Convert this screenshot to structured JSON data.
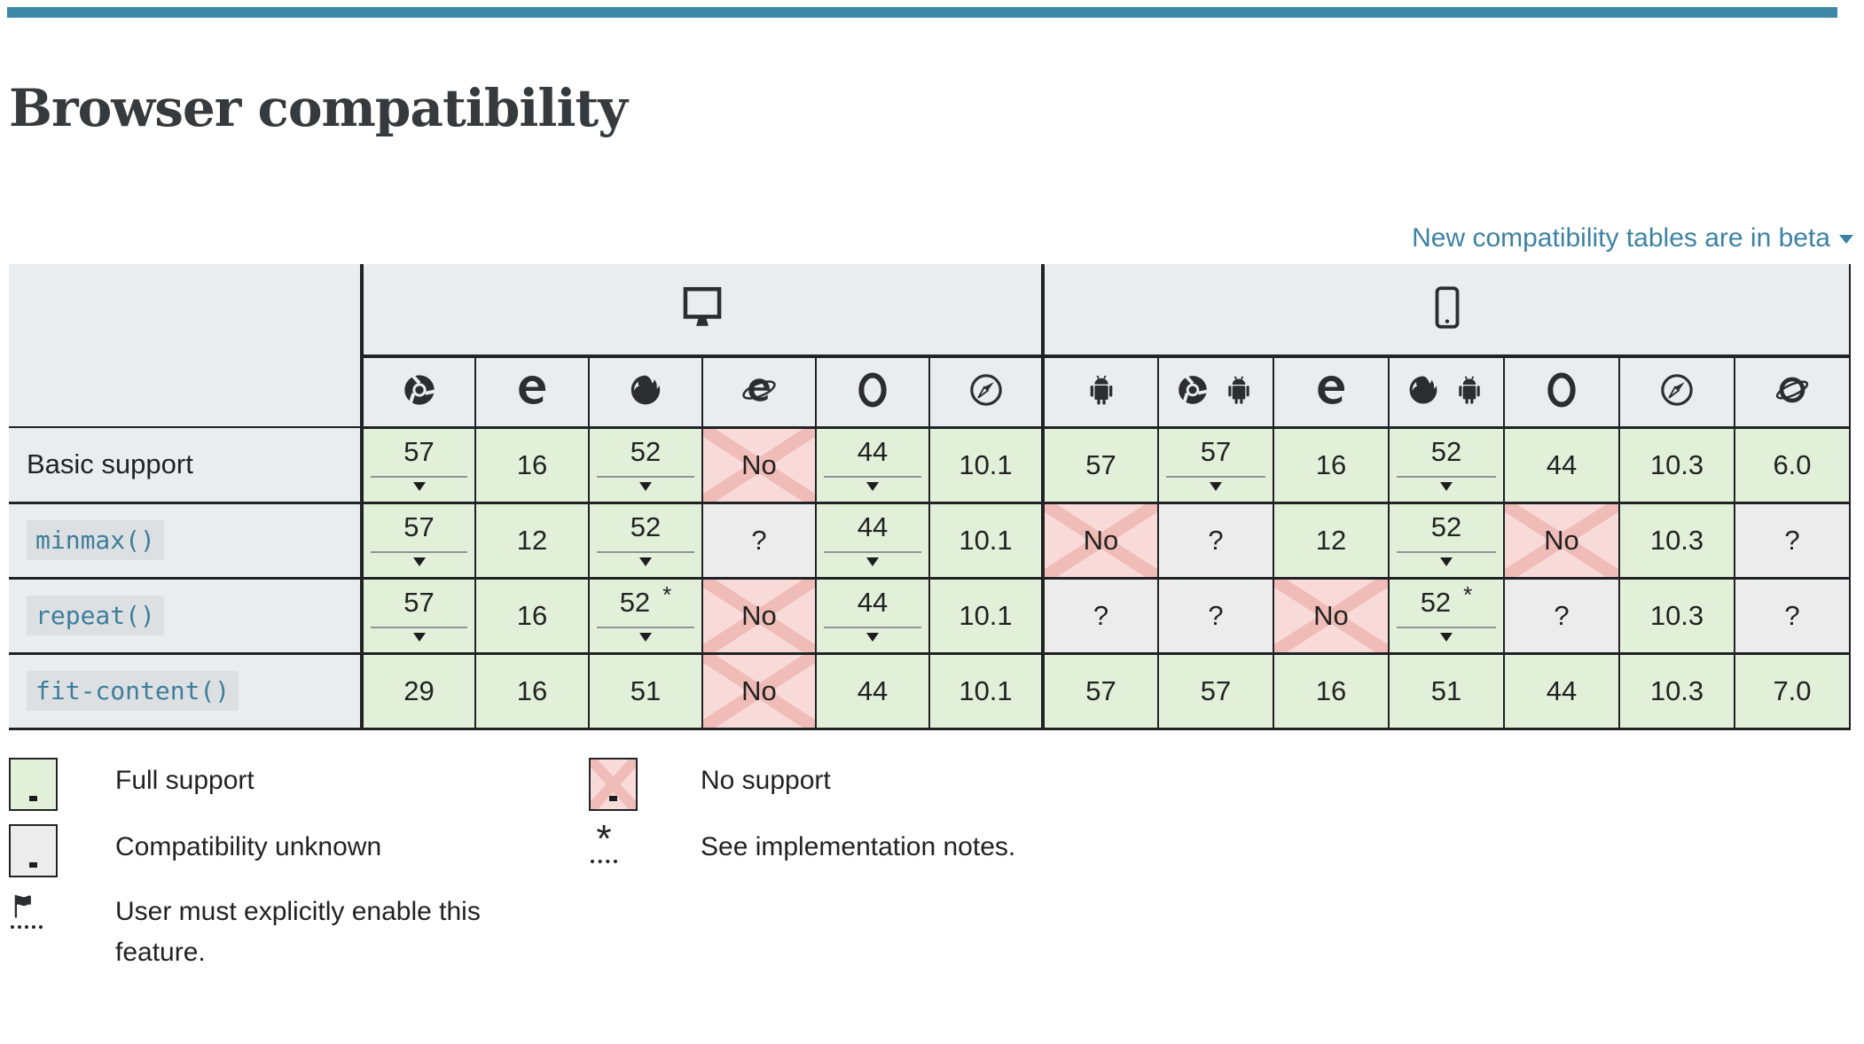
{
  "page": {
    "title": "Browser compatibility",
    "beta_link": "New compatibility tables are in beta"
  },
  "colors": {
    "accent_bar": "#3f87a6",
    "link": "#3d82a3",
    "header_bg": "#e9edf0",
    "support_yes_bg": "#e2f0d9",
    "support_no_bg": "#f8dbd9",
    "support_no_x": "#f0bcb8",
    "support_unknown_bg": "#ececec",
    "code_link": "#3d7e9a"
  },
  "table": {
    "platforms": [
      {
        "name": "desktop",
        "icon": "monitor",
        "colspan": 6
      },
      {
        "name": "mobile",
        "icon": "mobile",
        "colspan": 7
      }
    ],
    "browsers": [
      {
        "name": "chrome",
        "icons": [
          "chrome"
        ]
      },
      {
        "name": "edge",
        "icons": [
          "edge"
        ]
      },
      {
        "name": "firefox",
        "icons": [
          "firefox"
        ]
      },
      {
        "name": "ie",
        "icons": [
          "ie"
        ]
      },
      {
        "name": "opera",
        "icons": [
          "opera"
        ]
      },
      {
        "name": "safari",
        "icons": [
          "safari"
        ]
      },
      {
        "name": "webview-android",
        "icons": [
          "android"
        ]
      },
      {
        "name": "chrome-android",
        "icons": [
          "chrome",
          "android"
        ]
      },
      {
        "name": "edge-mobile",
        "icons": [
          "edge"
        ]
      },
      {
        "name": "firefox-android",
        "icons": [
          "firefox",
          "android"
        ]
      },
      {
        "name": "opera-android",
        "icons": [
          "opera"
        ]
      },
      {
        "name": "safari-ios",
        "icons": [
          "safari"
        ]
      },
      {
        "name": "samsung-internet",
        "icons": [
          "samsung"
        ]
      }
    ],
    "rows": [
      {
        "key": "basic-support",
        "label": "Basic support",
        "label_style": "plain",
        "cells": [
          {
            "value": "57",
            "status": "yes",
            "notes": true
          },
          {
            "value": "16",
            "status": "yes"
          },
          {
            "value": "52",
            "status": "yes",
            "notes": true
          },
          {
            "value": "No",
            "status": "no"
          },
          {
            "value": "44",
            "status": "yes",
            "notes": true
          },
          {
            "value": "10.1",
            "status": "yes"
          },
          {
            "value": "57",
            "status": "yes"
          },
          {
            "value": "57",
            "status": "yes",
            "notes": true
          },
          {
            "value": "16",
            "status": "yes"
          },
          {
            "value": "52",
            "status": "yes",
            "notes": true
          },
          {
            "value": "44",
            "status": "yes"
          },
          {
            "value": "10.3",
            "status": "yes"
          },
          {
            "value": "6.0",
            "status": "yes"
          }
        ]
      },
      {
        "key": "minmax",
        "label": "minmax()",
        "label_style": "code",
        "cells": [
          {
            "value": "57",
            "status": "yes",
            "notes": true
          },
          {
            "value": "12",
            "status": "yes"
          },
          {
            "value": "52",
            "status": "yes",
            "notes": true
          },
          {
            "value": "?",
            "status": "unknown"
          },
          {
            "value": "44",
            "status": "yes",
            "notes": true
          },
          {
            "value": "10.1",
            "status": "yes"
          },
          {
            "value": "No",
            "status": "no"
          },
          {
            "value": "?",
            "status": "unknown"
          },
          {
            "value": "12",
            "status": "yes"
          },
          {
            "value": "52",
            "status": "yes",
            "notes": true
          },
          {
            "value": "No",
            "status": "no"
          },
          {
            "value": "10.3",
            "status": "yes"
          },
          {
            "value": "?",
            "status": "unknown"
          }
        ]
      },
      {
        "key": "repeat",
        "label": "repeat()",
        "label_style": "code",
        "cells": [
          {
            "value": "57",
            "status": "yes",
            "notes": true
          },
          {
            "value": "16",
            "status": "yes"
          },
          {
            "value": "52",
            "status": "yes",
            "notes": true,
            "star": "*"
          },
          {
            "value": "No",
            "status": "no"
          },
          {
            "value": "44",
            "status": "yes",
            "notes": true
          },
          {
            "value": "10.1",
            "status": "yes"
          },
          {
            "value": "?",
            "status": "unknown"
          },
          {
            "value": "?",
            "status": "unknown"
          },
          {
            "value": "No",
            "status": "no"
          },
          {
            "value": "52",
            "status": "yes",
            "notes": true,
            "star": "*"
          },
          {
            "value": "?",
            "status": "unknown"
          },
          {
            "value": "10.3",
            "status": "yes"
          },
          {
            "value": "?",
            "status": "unknown"
          }
        ]
      },
      {
        "key": "fit-content",
        "label": "fit-content()",
        "label_style": "code",
        "cells": [
          {
            "value": "29",
            "status": "yes"
          },
          {
            "value": "16",
            "status": "yes"
          },
          {
            "value": "51",
            "status": "yes"
          },
          {
            "value": "No",
            "status": "no"
          },
          {
            "value": "44",
            "status": "yes"
          },
          {
            "value": "10.1",
            "status": "yes"
          },
          {
            "value": "57",
            "status": "yes"
          },
          {
            "value": "57",
            "status": "yes"
          },
          {
            "value": "16",
            "status": "yes"
          },
          {
            "value": "51",
            "status": "yes"
          },
          {
            "value": "44",
            "status": "yes"
          },
          {
            "value": "10.3",
            "status": "yes"
          },
          {
            "value": "7.0",
            "status": "yes"
          }
        ]
      }
    ]
  },
  "legend": {
    "full_support": "Full support",
    "no_support": "No support",
    "unknown": "Compatibility unknown",
    "star_symbol": "*",
    "implementation_notes": "See implementation notes.",
    "flag_note": "User must explicitly enable this feature."
  }
}
